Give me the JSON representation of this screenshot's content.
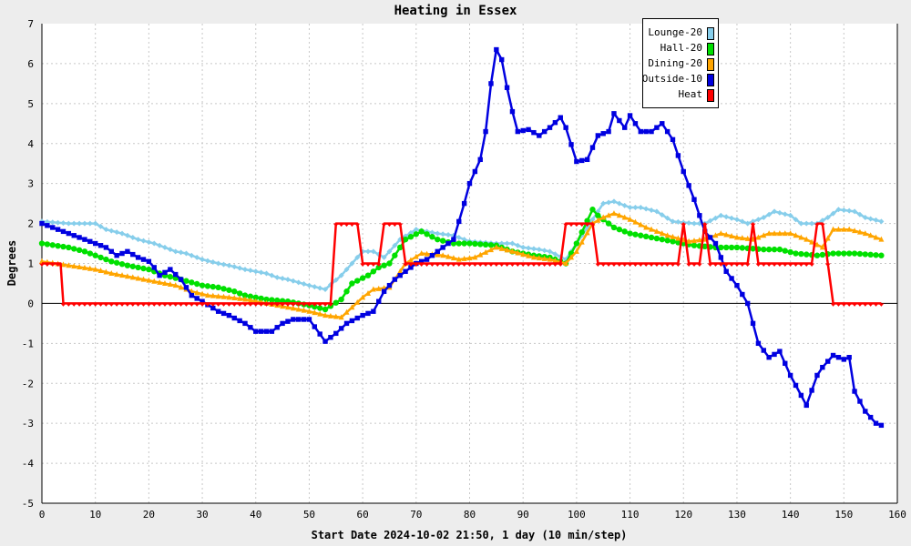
{
  "chart_data": {
    "type": "line",
    "title": "Heating in Essex",
    "xlabel": "Start Date 2024-10-02 21:50, 1 day (10 min/step)",
    "ylabel": "Degrees",
    "xlim": [
      0,
      160
    ],
    "ylim": [
      -5,
      7
    ],
    "xticks": [
      0,
      10,
      20,
      30,
      40,
      50,
      60,
      70,
      80,
      90,
      100,
      110,
      120,
      130,
      140,
      150,
      160
    ],
    "yticks": [
      -5,
      -4,
      -3,
      -2,
      -1,
      0,
      1,
      2,
      3,
      4,
      5,
      6,
      7
    ],
    "grid": true,
    "legend_position": "top-right",
    "series": [
      {
        "name": "Lounge-20",
        "color": "#87ceeb",
        "marker": "diamond",
        "points": [
          [
            0,
            2.05
          ],
          [
            5,
            2.0
          ],
          [
            10,
            2.0
          ],
          [
            12,
            1.85
          ],
          [
            15,
            1.75
          ],
          [
            18,
            1.6
          ],
          [
            21,
            1.5
          ],
          [
            23,
            1.4
          ],
          [
            25,
            1.3
          ],
          [
            27,
            1.25
          ],
          [
            30,
            1.1
          ],
          [
            33,
            1.0
          ],
          [
            35,
            0.95
          ],
          [
            38,
            0.85
          ],
          [
            42,
            0.75
          ],
          [
            44,
            0.65
          ],
          [
            46,
            0.6
          ],
          [
            50,
            0.45
          ],
          [
            53,
            0.35
          ],
          [
            56,
            0.7
          ],
          [
            58,
            1.0
          ],
          [
            60,
            1.3
          ],
          [
            62,
            1.3
          ],
          [
            64,
            1.15
          ],
          [
            65,
            1.3
          ],
          [
            67,
            1.6
          ],
          [
            70,
            1.85
          ],
          [
            74,
            1.75
          ],
          [
            77,
            1.7
          ],
          [
            80,
            1.55
          ],
          [
            85,
            1.5
          ],
          [
            88,
            1.5
          ],
          [
            90,
            1.4
          ],
          [
            93,
            1.35
          ],
          [
            95,
            1.3
          ],
          [
            98,
            1.1
          ],
          [
            100,
            1.5
          ],
          [
            103,
            2.1
          ],
          [
            105,
            2.5
          ],
          [
            107,
            2.55
          ],
          [
            110,
            2.4
          ],
          [
            112,
            2.4
          ],
          [
            115,
            2.3
          ],
          [
            118,
            2.05
          ],
          [
            122,
            2.0
          ],
          [
            124,
            2.0
          ],
          [
            127,
            2.2
          ],
          [
            130,
            2.1
          ],
          [
            132,
            2.0
          ],
          [
            135,
            2.15
          ],
          [
            137,
            2.3
          ],
          [
            140,
            2.2
          ],
          [
            142,
            2.0
          ],
          [
            145,
            2.0
          ],
          [
            147,
            2.15
          ],
          [
            149,
            2.35
          ],
          [
            152,
            2.3
          ],
          [
            154,
            2.15
          ],
          [
            157,
            2.05
          ]
        ]
      },
      {
        "name": "Hall-20",
        "color": "#00e000",
        "marker": "circle",
        "points": [
          [
            0,
            1.5
          ],
          [
            5,
            1.4
          ],
          [
            8,
            1.3
          ],
          [
            10,
            1.2
          ],
          [
            13,
            1.05
          ],
          [
            16,
            0.95
          ],
          [
            20,
            0.85
          ],
          [
            23,
            0.7
          ],
          [
            26,
            0.6
          ],
          [
            30,
            0.45
          ],
          [
            33,
            0.4
          ],
          [
            36,
            0.3
          ],
          [
            38,
            0.2
          ],
          [
            42,
            0.1
          ],
          [
            46,
            0.05
          ],
          [
            50,
            -0.05
          ],
          [
            53,
            -0.15
          ],
          [
            56,
            0.1
          ],
          [
            58,
            0.5
          ],
          [
            61,
            0.7
          ],
          [
            63,
            0.9
          ],
          [
            65,
            1.0
          ],
          [
            68,
            1.6
          ],
          [
            71,
            1.8
          ],
          [
            74,
            1.6
          ],
          [
            77,
            1.5
          ],
          [
            80,
            1.5
          ],
          [
            85,
            1.45
          ],
          [
            88,
            1.3
          ],
          [
            92,
            1.2
          ],
          [
            95,
            1.15
          ],
          [
            98,
            1.0
          ],
          [
            100,
            1.5
          ],
          [
            103,
            2.35
          ],
          [
            104,
            2.2
          ],
          [
            107,
            1.9
          ],
          [
            110,
            1.75
          ],
          [
            114,
            1.65
          ],
          [
            118,
            1.55
          ],
          [
            122,
            1.45
          ],
          [
            126,
            1.4
          ],
          [
            130,
            1.4
          ],
          [
            135,
            1.35
          ],
          [
            138,
            1.35
          ],
          [
            141,
            1.25
          ],
          [
            145,
            1.2
          ],
          [
            148,
            1.25
          ],
          [
            152,
            1.25
          ],
          [
            157,
            1.2
          ]
        ]
      },
      {
        "name": "Dining-20",
        "color": "#ffa500",
        "marker": "triangle",
        "points": [
          [
            0,
            1.05
          ],
          [
            5,
            0.95
          ],
          [
            10,
            0.85
          ],
          [
            13,
            0.75
          ],
          [
            17,
            0.65
          ],
          [
            21,
            0.55
          ],
          [
            25,
            0.45
          ],
          [
            28,
            0.3
          ],
          [
            31,
            0.2
          ],
          [
            35,
            0.15
          ],
          [
            38,
            0.1
          ],
          [
            42,
            0.0
          ],
          [
            46,
            -0.1
          ],
          [
            50,
            -0.2
          ],
          [
            53,
            -0.3
          ],
          [
            56,
            -0.35
          ],
          [
            58,
            -0.1
          ],
          [
            60,
            0.15
          ],
          [
            62,
            0.35
          ],
          [
            65,
            0.4
          ],
          [
            68,
            1.0
          ],
          [
            71,
            1.25
          ],
          [
            75,
            1.2
          ],
          [
            78,
            1.1
          ],
          [
            81,
            1.15
          ],
          [
            85,
            1.4
          ],
          [
            88,
            1.3
          ],
          [
            92,
            1.15
          ],
          [
            95,
            1.1
          ],
          [
            98,
            1.0
          ],
          [
            100,
            1.3
          ],
          [
            103,
            2.0
          ],
          [
            105,
            2.15
          ],
          [
            107,
            2.25
          ],
          [
            110,
            2.1
          ],
          [
            113,
            1.9
          ],
          [
            117,
            1.7
          ],
          [
            121,
            1.55
          ],
          [
            124,
            1.6
          ],
          [
            127,
            1.75
          ],
          [
            130,
            1.65
          ],
          [
            133,
            1.6
          ],
          [
            136,
            1.75
          ],
          [
            140,
            1.75
          ],
          [
            143,
            1.6
          ],
          [
            146,
            1.4
          ],
          [
            148,
            1.85
          ],
          [
            151,
            1.85
          ],
          [
            154,
            1.75
          ],
          [
            157,
            1.6
          ]
        ]
      },
      {
        "name": "Outside-10",
        "color": "#0000e0",
        "marker": "square",
        "points": [
          [
            0,
            2.0
          ],
          [
            2,
            1.9
          ],
          [
            4,
            1.8
          ],
          [
            6,
            1.7
          ],
          [
            8,
            1.6
          ],
          [
            10,
            1.5
          ],
          [
            12,
            1.4
          ],
          [
            14,
            1.2
          ],
          [
            16,
            1.3
          ],
          [
            18,
            1.15
          ],
          [
            20,
            1.05
          ],
          [
            21,
            0.9
          ],
          [
            22,
            0.7
          ],
          [
            24,
            0.85
          ],
          [
            26,
            0.6
          ],
          [
            28,
            0.2
          ],
          [
            30,
            0.05
          ],
          [
            33,
            -0.2
          ],
          [
            35,
            -0.3
          ],
          [
            38,
            -0.5
          ],
          [
            40,
            -0.7
          ],
          [
            43,
            -0.7
          ],
          [
            45,
            -0.5
          ],
          [
            47,
            -0.4
          ],
          [
            50,
            -0.4
          ],
          [
            53,
            -0.95
          ],
          [
            55,
            -0.75
          ],
          [
            57,
            -0.5
          ],
          [
            60,
            -0.3
          ],
          [
            62,
            -0.2
          ],
          [
            64,
            0.3
          ],
          [
            66,
            0.6
          ],
          [
            68,
            0.8
          ],
          [
            70,
            1.0
          ],
          [
            72,
            1.1
          ],
          [
            75,
            1.4
          ],
          [
            77,
            1.6
          ],
          [
            79,
            2.5
          ],
          [
            80,
            3.0
          ],
          [
            82,
            3.6
          ],
          [
            83,
            4.3
          ],
          [
            84,
            5.5
          ],
          [
            85,
            6.35
          ],
          [
            86,
            6.1
          ],
          [
            87,
            5.4
          ],
          [
            88,
            4.8
          ],
          [
            89,
            4.3
          ],
          [
            91,
            4.35
          ],
          [
            93,
            4.2
          ],
          [
            95,
            4.4
          ],
          [
            97,
            4.65
          ],
          [
            98,
            4.4
          ],
          [
            100,
            3.55
          ],
          [
            102,
            3.6
          ],
          [
            104,
            4.2
          ],
          [
            106,
            4.3
          ],
          [
            107,
            4.75
          ],
          [
            109,
            4.4
          ],
          [
            110,
            4.7
          ],
          [
            112,
            4.3
          ],
          [
            114,
            4.3
          ],
          [
            116,
            4.5
          ],
          [
            118,
            4.1
          ],
          [
            120,
            3.3
          ],
          [
            122,
            2.6
          ],
          [
            124,
            1.8
          ],
          [
            126,
            1.5
          ],
          [
            128,
            0.8
          ],
          [
            130,
            0.45
          ],
          [
            132,
            0.0
          ],
          [
            134,
            -1.0
          ],
          [
            136,
            -1.35
          ],
          [
            138,
            -1.2
          ],
          [
            140,
            -1.8
          ],
          [
            142,
            -2.3
          ],
          [
            143,
            -2.55
          ],
          [
            145,
            -1.8
          ],
          [
            146,
            -1.6
          ],
          [
            148,
            -1.3
          ],
          [
            150,
            -1.4
          ],
          [
            151,
            -1.35
          ],
          [
            152,
            -2.2
          ],
          [
            154,
            -2.7
          ],
          [
            156,
            -3.0
          ],
          [
            157,
            -3.05
          ]
        ]
      },
      {
        "name": "Heat",
        "color": "#ff0000",
        "marker": "downtriangle",
        "points": [
          [
            0,
            1
          ],
          [
            3.5,
            1
          ],
          [
            4,
            0
          ],
          [
            54,
            0
          ],
          [
            55,
            2
          ],
          [
            59,
            2
          ],
          [
            60,
            1
          ],
          [
            63,
            1
          ],
          [
            64,
            2
          ],
          [
            67,
            2
          ],
          [
            68,
            1
          ],
          [
            97,
            1
          ],
          [
            98,
            2
          ],
          [
            103,
            2
          ],
          [
            104,
            1
          ],
          [
            119,
            1
          ],
          [
            120,
            2
          ],
          [
            121,
            1
          ],
          [
            123,
            1
          ],
          [
            124,
            2
          ],
          [
            125,
            1
          ],
          [
            132,
            1
          ],
          [
            133,
            2
          ],
          [
            134,
            1
          ],
          [
            144,
            1
          ],
          [
            145,
            2
          ],
          [
            146,
            2
          ],
          [
            147,
            1
          ],
          [
            148,
            0
          ],
          [
            157,
            0
          ]
        ]
      }
    ]
  }
}
